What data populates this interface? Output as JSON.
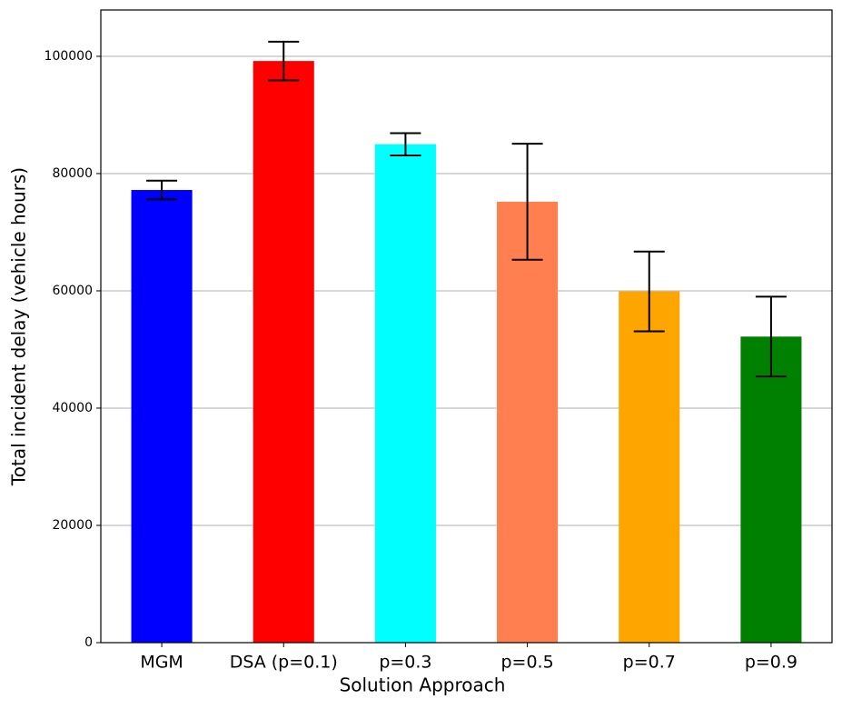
{
  "chart_data": {
    "type": "bar",
    "x_label": "Solution Approach",
    "y_label": "Total incident delay (vehicle hours)",
    "categories": [
      "MGM",
      "DSA (p=0.1)",
      "p=0.3",
      "p=0.5",
      "p=0.7",
      "p=0.9"
    ],
    "values": [
      77200,
      99200,
      85000,
      75200,
      59900,
      52200
    ],
    "errors": [
      1600,
      3300,
      1900,
      9900,
      6800,
      6800
    ],
    "colors": [
      "#0000ff",
      "#ff0000",
      "#00ffff",
      "#ff7f50",
      "#ffa500",
      "#008000"
    ],
    "ylim": [
      0,
      107900
    ],
    "yticks": [
      0,
      20000,
      40000,
      60000,
      80000,
      100000
    ],
    "grid": true
  }
}
